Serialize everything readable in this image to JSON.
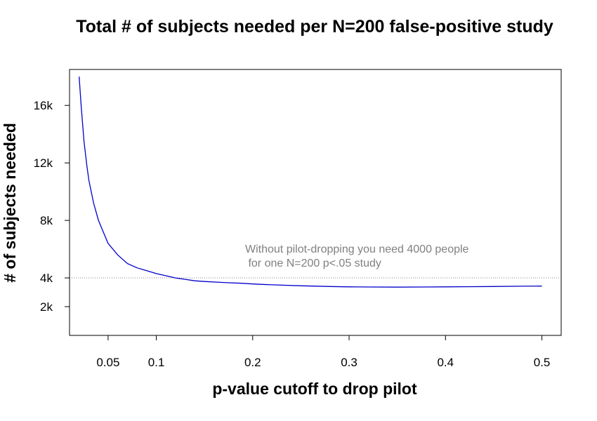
{
  "chart_data": {
    "type": "line",
    "title": "Total # of subjects needed per N=200 false-positive study",
    "xlabel": "p-value cutoff to drop pilot",
    "ylabel": "# of subjects needed",
    "xlim": [
      0.01,
      0.52
    ],
    "ylim": [
      0,
      18500
    ],
    "x_ticks": [
      0.05,
      0.1,
      0.2,
      0.3,
      0.4,
      0.5
    ],
    "x_tick_labels": [
      "0.05",
      "0.1",
      "0.2",
      "0.3",
      "0.4",
      "0.5"
    ],
    "y_ticks": [
      2000,
      4000,
      8000,
      12000,
      16000
    ],
    "y_tick_labels": [
      "2k",
      "4k",
      "8k",
      "12k",
      "16k"
    ],
    "grid": false,
    "series": [
      {
        "color": "#0000cc",
        "x": [
          0.02,
          0.022,
          0.025,
          0.028,
          0.03,
          0.035,
          0.04,
          0.045,
          0.05,
          0.06,
          0.07,
          0.08,
          0.09,
          0.1,
          0.11,
          0.12,
          0.13,
          0.14,
          0.15,
          0.17,
          0.19,
          0.2,
          0.22,
          0.25,
          0.28,
          0.3,
          0.32,
          0.35,
          0.38,
          0.4,
          0.42,
          0.45,
          0.48,
          0.5
        ],
        "y": [
          18000,
          16000,
          13500,
          11800,
          10800,
          9200,
          8000,
          7200,
          6400,
          5600,
          5000,
          4700,
          4500,
          4300,
          4150,
          4000,
          3900,
          3800,
          3750,
          3680,
          3620,
          3580,
          3520,
          3450,
          3400,
          3380,
          3370,
          3360,
          3370,
          3380,
          3390,
          3400,
          3420,
          3430
        ]
      }
    ],
    "reference_line": {
      "y": 4000,
      "color": "#808080",
      "style": "dotted"
    },
    "annotation": {
      "lines": [
        "Without pilot-dropping you need 4000 people",
        " for one N=200 p<.05 study"
      ],
      "color": "#808080"
    }
  }
}
